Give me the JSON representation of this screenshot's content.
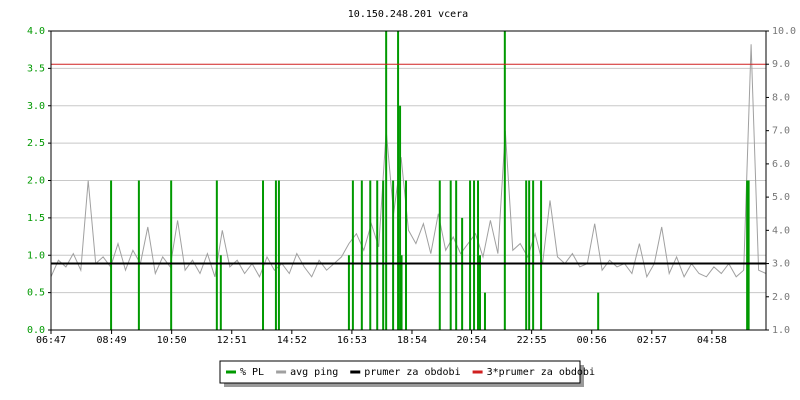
{
  "chart_data": {
    "type": "line",
    "title": "10.150.248.201 vcera",
    "xlim": [
      0,
      1440
    ],
    "xticks": [
      {
        "value": 0,
        "label": "06:47"
      },
      {
        "value": 122,
        "label": "08:49"
      },
      {
        "value": 243,
        "label": "10:50"
      },
      {
        "value": 364,
        "label": "12:51"
      },
      {
        "value": 485,
        "label": "14:52"
      },
      {
        "value": 606,
        "label": "16:53"
      },
      {
        "value": 727,
        "label": "18:54"
      },
      {
        "value": 847,
        "label": "20:54"
      },
      {
        "value": 968,
        "label": "22:55"
      },
      {
        "value": 1089,
        "label": "00:56"
      },
      {
        "value": 1210,
        "label": "02:57"
      },
      {
        "value": 1331,
        "label": "04:58"
      }
    ],
    "ylim": [
      0,
      4
    ],
    "yticks": [
      {
        "value": 0,
        "label": "0.0"
      },
      {
        "value": 0.5,
        "label": "0.5"
      },
      {
        "value": 1,
        "label": "1.0"
      },
      {
        "value": 1.5,
        "label": "1.5"
      },
      {
        "value": 2,
        "label": "2.0"
      },
      {
        "value": 2.5,
        "label": "2.5"
      },
      {
        "value": 3,
        "label": "3.0"
      },
      {
        "value": 3.5,
        "label": "3.5"
      },
      {
        "value": 4,
        "label": "4.0"
      }
    ],
    "y2lim": [
      1,
      10
    ],
    "y2ticks": [
      {
        "value": 1,
        "label": "1.0"
      },
      {
        "value": 2,
        "label": "2.0"
      },
      {
        "value": 3,
        "label": "3.0"
      },
      {
        "value": 4,
        "label": "4.0"
      },
      {
        "value": 5,
        "label": "5.0"
      },
      {
        "value": 6,
        "label": "6.0"
      },
      {
        "value": 7,
        "label": "7.0"
      },
      {
        "value": 8,
        "label": "8.0"
      },
      {
        "value": 9,
        "label": "9.0"
      },
      {
        "value": 10,
        "label": "10.0"
      }
    ],
    "grid": true,
    "series": [
      {
        "name": "% PL",
        "color": "#009900",
        "style": "spikes",
        "x": [
          121,
          177,
          242,
          334,
          342,
          427,
          453,
          459,
          600,
          608,
          626,
          643,
          657,
          669,
          675,
          689,
          699,
          703,
          706,
          715,
          783,
          805,
          816,
          828,
          844,
          852,
          860,
          864,
          874,
          914,
          957,
          963,
          971,
          987,
          1102,
          1402,
          1405
        ],
        "values": [
          2,
          2,
          2,
          2,
          1,
          2,
          2,
          2,
          1,
          2,
          2,
          2,
          2,
          2,
          4,
          2,
          4,
          3,
          1,
          2,
          2,
          2,
          2,
          1.5,
          2,
          2,
          2,
          1,
          0.5,
          4,
          2,
          2,
          2,
          2,
          0.5,
          2,
          2
        ]
      },
      {
        "name": "avg ping",
        "color": "#a0a0a0",
        "style": "line",
        "axis": "y2",
        "x": [
          0,
          15,
          30,
          45,
          60,
          75,
          90,
          105,
          120,
          135,
          150,
          165,
          180,
          195,
          210,
          225,
          240,
          255,
          270,
          285,
          300,
          315,
          330,
          345,
          360,
          375,
          390,
          405,
          420,
          435,
          450,
          465,
          480,
          495,
          510,
          525,
          540,
          555,
          570,
          585,
          600,
          615,
          630,
          645,
          660,
          675,
          690,
          705,
          720,
          735,
          750,
          765,
          780,
          795,
          810,
          825,
          840,
          855,
          870,
          885,
          900,
          915,
          930,
          945,
          960,
          975,
          990,
          1005,
          1020,
          1035,
          1050,
          1065,
          1080,
          1095,
          1110,
          1125,
          1140,
          1155,
          1170,
          1185,
          1200,
          1215,
          1230,
          1245,
          1260,
          1275,
          1290,
          1305,
          1320,
          1335,
          1350,
          1365,
          1380,
          1395,
          1410,
          1425,
          1440
        ],
        "values": [
          2.6,
          3.1,
          2.9,
          3.3,
          2.8,
          5.5,
          3.0,
          3.2,
          2.9,
          3.6,
          2.8,
          3.4,
          3.0,
          4.1,
          2.7,
          3.2,
          2.9,
          4.3,
          2.8,
          3.1,
          2.7,
          3.3,
          2.6,
          4.0,
          2.9,
          3.1,
          2.7,
          3.0,
          2.6,
          3.2,
          2.8,
          3.0,
          2.7,
          3.3,
          2.9,
          2.6,
          3.1,
          2.8,
          3.0,
          3.2,
          3.6,
          3.9,
          3.4,
          4.2,
          3.5,
          7.0,
          4.5,
          6.2,
          4.0,
          3.6,
          4.2,
          3.3,
          4.5,
          3.4,
          3.8,
          3.3,
          3.6,
          3.9,
          3.2,
          4.3,
          3.3,
          7.0,
          3.4,
          3.6,
          3.2,
          3.9,
          3.0,
          4.9,
          3.2,
          3.0,
          3.3,
          2.9,
          3.0,
          4.2,
          2.8,
          3.1,
          2.9,
          3.0,
          2.7,
          3.6,
          2.6,
          3.0,
          4.1,
          2.7,
          3.2,
          2.6,
          3.0,
          2.7,
          2.6,
          2.9,
          2.7,
          3.0,
          2.6,
          2.8,
          9.6,
          2.8,
          2.7
        ]
      }
    ],
    "hlines": [
      {
        "name": "prumer za obdobi",
        "color": "#000000",
        "value": 3.0,
        "axis": "y2",
        "width": 2
      },
      {
        "name": "3*prumer za obdobi",
        "color": "#d02020",
        "value": 9.0,
        "axis": "y2",
        "width": 1
      }
    ]
  }
}
